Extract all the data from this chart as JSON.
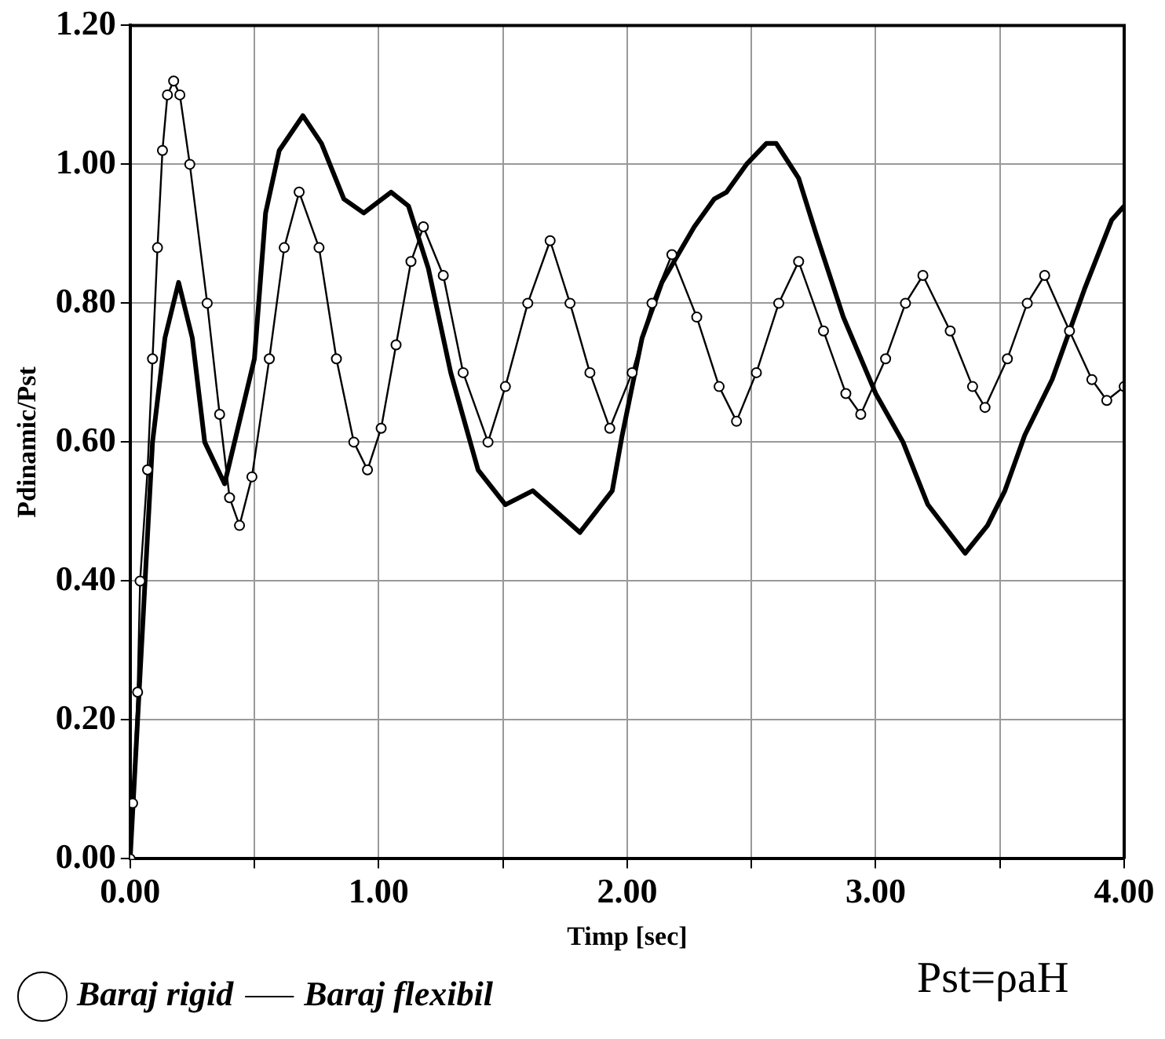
{
  "chart_data": {
    "type": "line",
    "xlabel": "Timp [sec]",
    "ylabel": "Pdinamic/Pst",
    "xlim": [
      0,
      4
    ],
    "ylim": [
      0,
      1.2
    ],
    "xticks": [
      {
        "value": 0,
        "label": "0.00"
      },
      {
        "value": 0.5,
        "label": null
      },
      {
        "value": 1,
        "label": "1.00"
      },
      {
        "value": 1.5,
        "label": null
      },
      {
        "value": 2,
        "label": "2.00"
      },
      {
        "value": 2.5,
        "label": null
      },
      {
        "value": 3,
        "label": "3.00"
      },
      {
        "value": 3.5,
        "label": null
      },
      {
        "value": 4,
        "label": "4.00"
      }
    ],
    "yticks": [
      {
        "value": 0,
        "label": "0.00"
      },
      {
        "value": 0.2,
        "label": "0.20"
      },
      {
        "value": 0.4,
        "label": "0.40"
      },
      {
        "value": 0.6,
        "label": "0.60"
      },
      {
        "value": 0.8,
        "label": "0.80"
      },
      {
        "value": 1.0,
        "label": "1.00"
      },
      {
        "value": 1.2,
        "label": "1.20"
      }
    ],
    "grid": true,
    "legend": "bottom",
    "line_style": "solid",
    "annotations": [
      "Pst=ρaH"
    ],
    "series": [
      {
        "name": "Baraj rigid",
        "color": "#000000",
        "marker": "circle",
        "x": [
          0,
          0.01,
          0.03,
          0.04,
          0.07,
          0.09,
          0.11,
          0.13,
          0.15,
          0.175,
          0.2,
          0.24,
          0.31,
          0.36,
          0.4,
          0.44,
          0.49,
          0.56,
          0.62,
          0.68,
          0.76,
          0.83,
          0.9,
          0.955,
          1.01,
          1.07,
          1.13,
          1.18,
          1.26,
          1.34,
          1.44,
          1.51,
          1.6,
          1.69,
          1.77,
          1.85,
          1.93,
          2.02,
          2.1,
          2.18,
          2.28,
          2.37,
          2.44,
          2.52,
          2.61,
          2.69,
          2.79,
          2.88,
          2.94,
          3.04,
          3.12,
          3.19,
          3.3,
          3.39,
          3.44,
          3.53,
          3.61,
          3.68,
          3.78,
          3.87,
          3.93,
          4.0
        ],
        "values": [
          0,
          0.08,
          0.24,
          0.4,
          0.56,
          0.72,
          0.88,
          1.02,
          1.1,
          1.12,
          1.1,
          1.0,
          0.8,
          0.64,
          0.52,
          0.48,
          0.55,
          0.72,
          0.88,
          0.96,
          0.88,
          0.72,
          0.6,
          0.56,
          0.62,
          0.74,
          0.86,
          0.91,
          0.84,
          0.7,
          0.6,
          0.68,
          0.8,
          0.89,
          0.8,
          0.7,
          0.62,
          0.7,
          0.8,
          0.87,
          0.78,
          0.68,
          0.63,
          0.7,
          0.8,
          0.86,
          0.76,
          0.67,
          0.64,
          0.72,
          0.8,
          0.84,
          0.76,
          0.68,
          0.65,
          0.72,
          0.8,
          0.84,
          0.76,
          0.69,
          0.66,
          0.68
        ]
      },
      {
        "name": "Baraj flexibil",
        "color": "#000000",
        "marker": "none",
        "x": [
          0,
          0.09,
          0.14,
          0.195,
          0.25,
          0.3,
          0.38,
          0.5,
          0.545,
          0.6,
          0.695,
          0.77,
          0.86,
          0.94,
          1.05,
          1.12,
          1.2,
          1.29,
          1.4,
          1.51,
          1.62,
          1.81,
          1.94,
          1.98,
          2.06,
          2.14,
          2.27,
          2.35,
          2.4,
          2.48,
          2.56,
          2.6,
          2.69,
          2.76,
          2.87,
          3.0,
          3.11,
          3.21,
          3.36,
          3.45,
          3.52,
          3.6,
          3.71,
          3.84,
          3.95,
          4.0
        ],
        "values": [
          0,
          0.6,
          0.75,
          0.83,
          0.75,
          0.6,
          0.54,
          0.72,
          0.93,
          1.02,
          1.07,
          1.03,
          0.95,
          0.93,
          0.96,
          0.94,
          0.85,
          0.7,
          0.56,
          0.51,
          0.53,
          0.47,
          0.53,
          0.61,
          0.75,
          0.83,
          0.91,
          0.95,
          0.96,
          1.0,
          1.03,
          1.03,
          0.98,
          0.9,
          0.78,
          0.67,
          0.6,
          0.51,
          0.44,
          0.48,
          0.53,
          0.61,
          0.69,
          0.82,
          0.92,
          0.94
        ]
      }
    ]
  }
}
